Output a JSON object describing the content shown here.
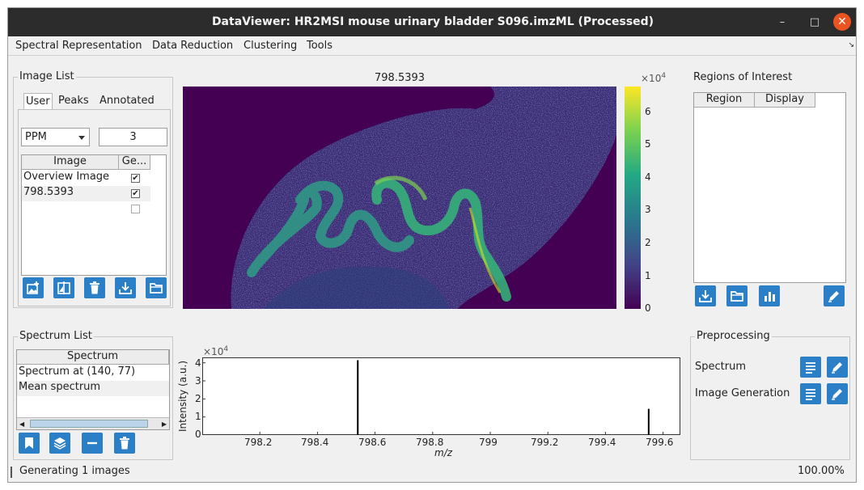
{
  "window": {
    "title": "DataViewer: HR2MSI mouse urinary bladder S096.imzML (Processed)",
    "minimize": "–",
    "maximize": "□",
    "close": "✕"
  },
  "menu": [
    "Spectral Representation",
    "Data Reduction",
    "Clustering",
    "Tools"
  ],
  "image_list": {
    "title": "Image List",
    "tabs": [
      "User",
      "Peaks",
      "Annotated"
    ],
    "unit_select": "PPM",
    "tolerance": "3",
    "columns": [
      "Image",
      "Ge..."
    ],
    "rows": [
      {
        "name": "Overview Image",
        "checked": true
      },
      {
        "name": "798.5393",
        "checked": true
      },
      {
        "name": "",
        "checked": false
      }
    ],
    "buttons": [
      "add-image-icon",
      "split-icon",
      "trash-icon",
      "download-icon",
      "folder-icon"
    ]
  },
  "image_view": {
    "title": "798.5393",
    "scale_exponent": "×10",
    "scale_power": "4",
    "colorbar_ticks": [
      "0",
      "1",
      "2",
      "3",
      "4",
      "5",
      "6"
    ]
  },
  "regions": {
    "title": "Regions of Interest",
    "columns": [
      "Region",
      "Display"
    ],
    "buttons": [
      "download-icon",
      "folder-icon",
      "bar-chart-icon",
      "pencil-icon"
    ]
  },
  "spectrum_list": {
    "title": "Spectrum List",
    "column": "Spectrum",
    "rows": [
      "Spectrum at (140, 77)",
      "Mean spectrum"
    ],
    "buttons": [
      "bookmark-icon",
      "layers-icon",
      "minus-icon",
      "trash-icon"
    ]
  },
  "chart_data": {
    "type": "bar",
    "x": [
      798.54,
      799.55
    ],
    "values": [
      4.15,
      1.45
    ],
    "xlabel": "m/z",
    "ylabel": "Intensity (a.u.)",
    "y_multiplier": "×10",
    "y_power": "4",
    "xlim": [
      798.0,
      799.66
    ],
    "ylim": [
      0,
      4.3
    ],
    "xticks": [
      "798.2",
      "798.4",
      "798.6",
      "798.8",
      "799",
      "799.2",
      "799.4",
      "799.6"
    ],
    "yticks": [
      "0",
      "1",
      "2",
      "3",
      "4"
    ]
  },
  "preprocessing": {
    "title": "Preprocessing",
    "rows": [
      "Spectrum",
      "Image Generation"
    ]
  },
  "status": {
    "message": "Generating 1 images",
    "progress": "100.00%"
  }
}
